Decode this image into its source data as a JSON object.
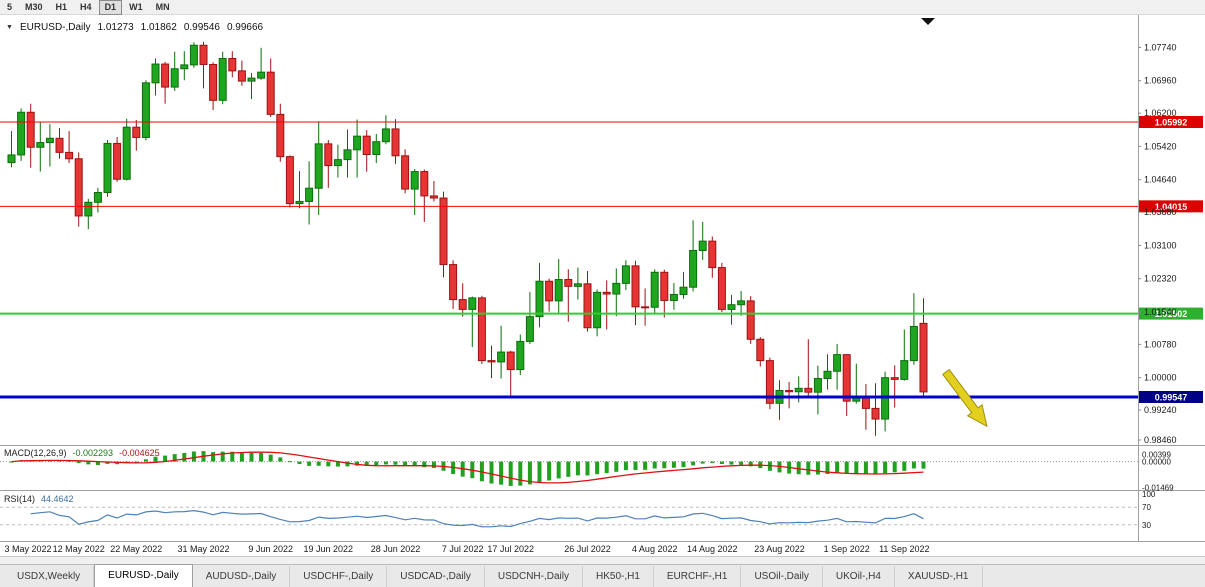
{
  "toolbar": {
    "buttons": [
      "5",
      "M30",
      "H1",
      "H4",
      "D1",
      "W1",
      "MN"
    ],
    "active": "D1"
  },
  "header": {
    "dropdown_icon": "▼",
    "symbol": "EURUSD-,Daily",
    "open": "1.01273",
    "high": "1.01862",
    "low": "0.99546",
    "close": "0.99666"
  },
  "macd": {
    "name": "MACD(12,26,9)",
    "value_main": "-0.002293",
    "value_signal": "-0.004625",
    "axis": [
      {
        "text": "0.00399",
        "value": 0.00399
      },
      {
        "text": "0.00000",
        "value": 0.0
      },
      {
        "text": "-0.01469",
        "value": -0.01469
      }
    ]
  },
  "rsi": {
    "name": "RSI(14)",
    "value": "44.4642",
    "axis": [
      {
        "text": "100",
        "value": 100
      },
      {
        "text": "70",
        "value": 70
      },
      {
        "text": "30",
        "value": 30
      }
    ],
    "levels": [
      70,
      30
    ]
  },
  "tabs": {
    "active_index": 1,
    "items": [
      {
        "label": "USDX,Weekly"
      },
      {
        "label": "EURUSD-,Daily"
      },
      {
        "label": "AUDUSD-,Daily"
      },
      {
        "label": "USDCHF-,Daily"
      },
      {
        "label": "USDCAD-,Daily"
      },
      {
        "label": "USDCNH-,Daily"
      },
      {
        "label": "HK50-,H1"
      },
      {
        "label": "EURCHF-,H1"
      },
      {
        "label": "USOil-,Daily"
      },
      {
        "label": "UKOil-,H4"
      },
      {
        "label": "XAUUSD-,H1"
      }
    ]
  },
  "colors": {
    "candle_up": "#1fa51f",
    "candle_up_border": "#0a6e0a",
    "candle_down": "#e53535",
    "candle_down_border": "#9c1212",
    "macd_bar": "#22a022",
    "macd_signal": "#dd1111",
    "rsi_line": "#4d82b8",
    "rsi_level": "#bbbbbb",
    "axis_text": "#1a1a1a"
  },
  "chart_data": {
    "type": "candlestick",
    "symbol": "EURUSD",
    "timeframe": "Daily",
    "title": "EURUSD-,Daily",
    "ylim": [
      0.982,
      1.083
    ],
    "y_axis_ticks": [
      "1.07740",
      "1.06960",
      "1.06200",
      "1.05420",
      "1.04640",
      "1.03880",
      "1.03100",
      "1.02320",
      "1.01540",
      "1.00780",
      "1.00000",
      "0.99240",
      "0.98460"
    ],
    "x_axis_labels": [
      {
        "text": "3 May 2022",
        "index": 0
      },
      {
        "text": "12 May 2022",
        "index": 7
      },
      {
        "text": "22 May 2022",
        "index": 13
      },
      {
        "text": "31 May 2022",
        "index": 20
      },
      {
        "text": "9 Jun 2022",
        "index": 27
      },
      {
        "text": "19 Jun 2022",
        "index": 33
      },
      {
        "text": "28 Jun 2022",
        "index": 40
      },
      {
        "text": "7 Jul 2022",
        "index": 47
      },
      {
        "text": "17 Jul 2022",
        "index": 52
      },
      {
        "text": "26 Jul 2022",
        "index": 60
      },
      {
        "text": "4 Aug 2022",
        "index": 67
      },
      {
        "text": "14 Aug 2022",
        "index": 73
      },
      {
        "text": "23 Aug 2022",
        "index": 80
      },
      {
        "text": "1 Sep 2022",
        "index": 87
      },
      {
        "text": "11 Sep 2022",
        "index": 93
      }
    ],
    "horizontal_lines": [
      {
        "price": 1.05992,
        "label": "1.05992",
        "line_color": "#ff0000",
        "label_bg": "#dd0000",
        "thickness": 1
      },
      {
        "price": 1.04015,
        "label": "1.04015",
        "line_color": "#ff0000",
        "label_bg": "#dd0000",
        "thickness": 1
      },
      {
        "price": 1.01502,
        "label": "1.01502",
        "line_color": "#33cc33",
        "label_bg": "#2fae2f",
        "thickness": 2
      },
      {
        "price": 0.99547,
        "label": "0.99547",
        "line_color": "#0000cc",
        "label_bg": "#000085",
        "thickness": 3
      }
    ],
    "indicators": [
      {
        "name": "MACD",
        "params": [
          12,
          26,
          9
        ],
        "display": "histogram+signal",
        "last_main": -0.002293,
        "last_signal": -0.004625
      },
      {
        "name": "RSI",
        "params": [
          14
        ],
        "last": 44.4642
      }
    ],
    "annotations": [
      {
        "type": "arrow",
        "direction": "down-right",
        "color": "#e3cf1d",
        "border": "#9f8f0e"
      }
    ],
    "candles": [
      [
        "2022-05-03",
        1.0504,
        1.0578,
        1.0493,
        1.0522
      ],
      [
        "2022-05-04",
        1.0522,
        1.0631,
        1.0508,
        1.0622
      ],
      [
        "2022-05-05",
        1.0622,
        1.0642,
        1.0492,
        1.054
      ],
      [
        "2022-05-06",
        1.054,
        1.0599,
        1.0483,
        1.0551
      ],
      [
        "2022-05-09",
        1.0551,
        1.0594,
        1.0495,
        1.0561
      ],
      [
        "2022-05-10",
        1.0561,
        1.0585,
        1.0513,
        1.0528
      ],
      [
        "2022-05-11",
        1.0528,
        1.0578,
        1.0503,
        1.0513
      ],
      [
        "2022-05-12",
        1.0513,
        1.0528,
        1.0354,
        1.0379
      ],
      [
        "2022-05-13",
        1.0379,
        1.0419,
        1.0348,
        1.0411
      ],
      [
        "2022-05-16",
        1.0411,
        1.0445,
        1.0387,
        1.0434
      ],
      [
        "2022-05-17",
        1.0434,
        1.0557,
        1.0424,
        1.0549
      ],
      [
        "2022-05-18",
        1.0549,
        1.0564,
        1.0459,
        1.0465
      ],
      [
        "2022-05-19",
        1.0465,
        1.0607,
        1.0462,
        1.0587
      ],
      [
        "2022-05-20",
        1.0587,
        1.0604,
        1.0532,
        1.0563
      ],
      [
        "2022-05-23",
        1.0563,
        1.0697,
        1.0556,
        1.0691
      ],
      [
        "2022-05-24",
        1.0691,
        1.0748,
        1.0661,
        1.0735
      ],
      [
        "2022-05-25",
        1.0735,
        1.074,
        1.0642,
        1.0681
      ],
      [
        "2022-05-26",
        1.0681,
        1.0764,
        1.0672,
        1.0724
      ],
      [
        "2022-05-27",
        1.0724,
        1.0765,
        1.0697,
        1.0733
      ],
      [
        "2022-05-30",
        1.0733,
        1.0786,
        1.0726,
        1.0779
      ],
      [
        "2022-05-31",
        1.0779,
        1.0787,
        1.0678,
        1.0734
      ],
      [
        "2022-06-01",
        1.0734,
        1.0739,
        1.0627,
        1.065
      ],
      [
        "2022-06-02",
        1.065,
        1.0764,
        1.0641,
        1.0748
      ],
      [
        "2022-06-03",
        1.0748,
        1.0765,
        1.0704,
        1.0719
      ],
      [
        "2022-06-06",
        1.0719,
        1.0743,
        1.0684,
        1.0695
      ],
      [
        "2022-06-07",
        1.0695,
        1.0714,
        1.0653,
        1.0702
      ],
      [
        "2022-06-08",
        1.0702,
        1.0773,
        1.0698,
        1.0716
      ],
      [
        "2022-06-09",
        1.0716,
        1.0748,
        1.0611,
        1.0617
      ],
      [
        "2022-06-10",
        1.0617,
        1.0642,
        1.0506,
        1.0518
      ],
      [
        "2022-06-13",
        1.0518,
        1.0521,
        1.0399,
        1.0408
      ],
      [
        "2022-06-14",
        1.0408,
        1.0484,
        1.0397,
        1.0413
      ],
      [
        "2022-06-15",
        1.0413,
        1.0507,
        1.0359,
        1.0444
      ],
      [
        "2022-06-16",
        1.0444,
        1.0601,
        1.0381,
        1.0548
      ],
      [
        "2022-06-17",
        1.0548,
        1.0557,
        1.0445,
        1.0497
      ],
      [
        "2022-06-20",
        1.0497,
        1.0546,
        1.0469,
        1.0511
      ],
      [
        "2022-06-21",
        1.0511,
        1.0582,
        1.0469,
        1.0534
      ],
      [
        "2022-06-22",
        1.0534,
        1.0605,
        1.0469,
        1.0566
      ],
      [
        "2022-06-23",
        1.0566,
        1.058,
        1.0483,
        1.0523
      ],
      [
        "2022-06-24",
        1.0523,
        1.0571,
        1.0503,
        1.0553
      ],
      [
        "2022-06-27",
        1.0553,
        1.0615,
        1.0547,
        1.0583
      ],
      [
        "2022-06-28",
        1.0583,
        1.0606,
        1.0501,
        1.052
      ],
      [
        "2022-06-29",
        1.052,
        1.0535,
        1.0432,
        1.0442
      ],
      [
        "2022-06-30",
        1.0442,
        1.0489,
        1.0381,
        1.0483
      ],
      [
        "2022-07-01",
        1.0483,
        1.0488,
        1.0365,
        1.0426
      ],
      [
        "2022-07-04",
        1.0426,
        1.0461,
        1.0413,
        1.0421
      ],
      [
        "2022-07-05",
        1.0421,
        1.0436,
        1.0235,
        1.0265
      ],
      [
        "2022-07-06",
        1.0265,
        1.0275,
        1.0161,
        1.0183
      ],
      [
        "2022-07-07",
        1.0183,
        1.0221,
        1.0143,
        1.016
      ],
      [
        "2022-07-08",
        1.016,
        1.019,
        1.0072,
        1.0187
      ],
      [
        "2022-07-11",
        1.0187,
        1.0192,
        1.0032,
        1.004
      ],
      [
        "2022-07-12",
        1.004,
        1.0075,
        0.9999,
        1.0037
      ],
      [
        "2022-07-13",
        1.0037,
        1.0122,
        0.9998,
        1.006
      ],
      [
        "2022-07-14",
        1.006,
        1.0063,
        0.9952,
        1.0019
      ],
      [
        "2022-07-15",
        1.0019,
        1.0101,
        1.0006,
        1.0085
      ],
      [
        "2022-07-18",
        1.0085,
        1.0201,
        1.0079,
        1.0143
      ],
      [
        "2022-07-19",
        1.0143,
        1.0269,
        1.0118,
        1.0226
      ],
      [
        "2022-07-20",
        1.0226,
        1.0232,
        1.0155,
        1.018
      ],
      [
        "2022-07-21",
        1.018,
        1.0278,
        1.0151,
        1.023
      ],
      [
        "2022-07-22",
        1.023,
        1.0254,
        1.0131,
        1.0214
      ],
      [
        "2022-07-25",
        1.0214,
        1.0258,
        1.0183,
        1.022
      ],
      [
        "2022-07-26",
        1.022,
        1.025,
        1.0108,
        1.0117
      ],
      [
        "2022-07-27",
        1.0117,
        1.0207,
        1.0097,
        1.02
      ],
      [
        "2022-07-28",
        1.02,
        1.0228,
        1.0113,
        1.0196
      ],
      [
        "2022-07-29",
        1.0196,
        1.0256,
        1.0144,
        1.0221
      ],
      [
        "2022-08-01",
        1.0221,
        1.0275,
        1.0205,
        1.0262
      ],
      [
        "2022-08-02",
        1.0262,
        1.0274,
        1.0123,
        1.0166
      ],
      [
        "2022-08-03",
        1.0166,
        1.0209,
        1.0122,
        1.0165
      ],
      [
        "2022-08-04",
        1.0165,
        1.0254,
        1.0152,
        1.0247
      ],
      [
        "2022-08-05",
        1.0247,
        1.0253,
        1.0141,
        1.0181
      ],
      [
        "2022-08-08",
        1.0181,
        1.0222,
        1.0159,
        1.0195
      ],
      [
        "2022-08-09",
        1.0195,
        1.0248,
        1.0185,
        1.0212
      ],
      [
        "2022-08-10",
        1.0212,
        1.0369,
        1.0202,
        1.0298
      ],
      [
        "2022-08-11",
        1.0298,
        1.0365,
        1.0276,
        1.032
      ],
      [
        "2022-08-12",
        1.032,
        1.0331,
        1.0234,
        1.0258
      ],
      [
        "2022-08-15",
        1.0258,
        1.0269,
        1.0154,
        1.016
      ],
      [
        "2022-08-16",
        1.016,
        1.0194,
        1.0124,
        1.0171
      ],
      [
        "2022-08-17",
        1.0171,
        1.0203,
        1.0145,
        1.018
      ],
      [
        "2022-08-18",
        1.018,
        1.0191,
        1.0079,
        1.009
      ],
      [
        "2022-08-19",
        1.009,
        1.0095,
        1.0026,
        1.004
      ],
      [
        "2022-08-22",
        1.004,
        1.0047,
        0.9926,
        0.994
      ],
      [
        "2022-08-23",
        0.994,
        0.9994,
        0.9901,
        0.997
      ],
      [
        "2022-08-24",
        0.997,
        0.999,
        0.9928,
        0.9967
      ],
      [
        "2022-08-25",
        0.9967,
        1.0003,
        0.9942,
        0.9975
      ],
      [
        "2022-08-26",
        0.9975,
        1.009,
        0.9954,
        0.9966
      ],
      [
        "2022-08-29",
        0.9966,
        1.0028,
        0.9914,
        0.9998
      ],
      [
        "2022-08-30",
        0.9998,
        1.0055,
        0.9972,
        1.0015
      ],
      [
        "2022-08-31",
        1.0015,
        1.0079,
        0.9972,
        1.0054
      ],
      [
        "2022-09-01",
        1.0054,
        1.0055,
        0.991,
        0.9945
      ],
      [
        "2022-09-02",
        0.9945,
        1.0033,
        0.9939,
        0.9952
      ],
      [
        "2022-09-05",
        0.9952,
        0.9985,
        0.9878,
        0.9928
      ],
      [
        "2022-09-06",
        0.9928,
        0.9987,
        0.9864,
        0.9903
      ],
      [
        "2022-09-07",
        0.9903,
        1.0014,
        0.9874,
        1.0
      ],
      [
        "2022-09-08",
        1.0,
        1.0029,
        0.993,
        0.9996
      ],
      [
        "2022-09-09",
        0.9996,
        1.0113,
        0.9993,
        1.004
      ],
      [
        "2022-09-12",
        1.004,
        1.0198,
        1.003,
        1.012
      ],
      [
        "2022-09-13",
        1.01273,
        1.01862,
        0.99546,
        0.99666
      ]
    ]
  }
}
